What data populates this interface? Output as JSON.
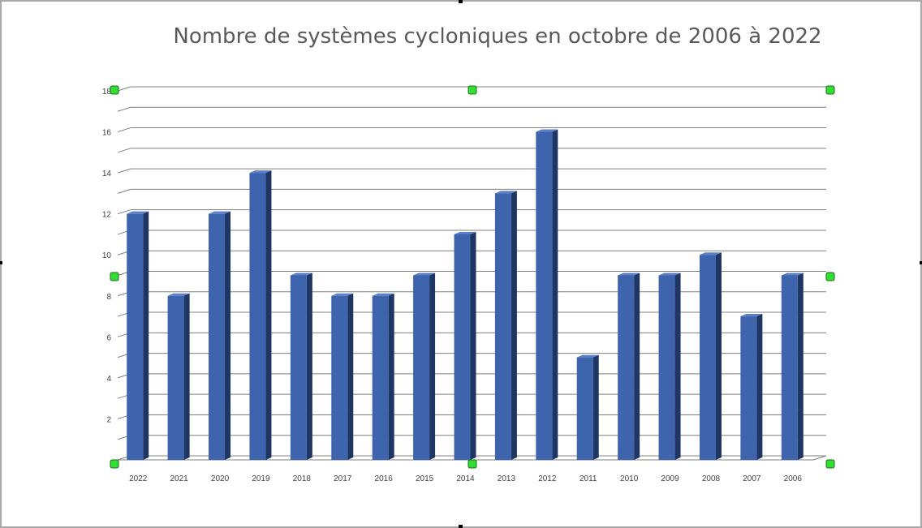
{
  "colors": {
    "bar_front": "#3d64ad",
    "bar_side": "#1f3563",
    "bar_top": "#5a7fc4",
    "gridline": "#7f7f7f",
    "handle_fill": "#33dd33",
    "handle_border": "#1a6e1a",
    "title": "#595959"
  },
  "chart_data": {
    "type": "bar",
    "style": "3d-column",
    "title": "Nombre de systèmes cycloniques en octobre de 2006 à 2022",
    "xlabel": "",
    "ylabel": "",
    "categories": [
      "2022",
      "2021",
      "2020",
      "2019",
      "2018",
      "2017",
      "2016",
      "2015",
      "2014",
      "2013",
      "2012",
      "2011",
      "2010",
      "2009",
      "2008",
      "2007",
      "2006"
    ],
    "values": [
      12,
      8,
      12,
      14,
      9,
      8,
      8,
      9,
      11,
      13,
      16,
      5,
      9,
      9,
      10,
      7,
      9
    ],
    "ylim": [
      0,
      18
    ],
    "yticks": [
      "2",
      "4",
      "6",
      "8",
      "10",
      "12",
      "14",
      "16",
      "18"
    ],
    "grid": true,
    "legend": "none"
  }
}
